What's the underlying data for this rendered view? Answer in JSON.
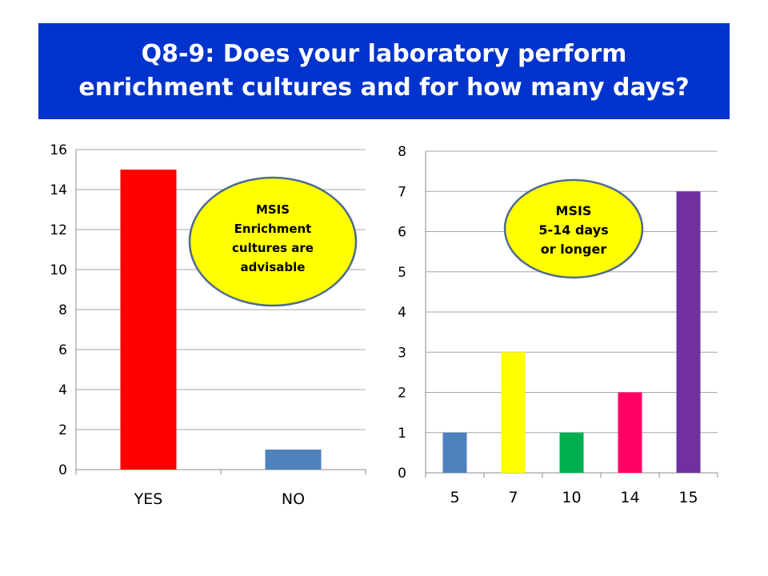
{
  "title": {
    "line1": "Q8-9: Does your laboratory perform",
    "line2": "enrichment cultures and for how many days?"
  },
  "chart_data": [
    {
      "type": "bar",
      "categories": [
        "YES",
        "NO"
      ],
      "values": [
        15,
        1
      ],
      "colors": [
        "#ff0000",
        "#4f81bd"
      ],
      "ylim": [
        0,
        16
      ],
      "yticks": [
        0,
        2,
        4,
        6,
        8,
        10,
        12,
        14,
        16
      ],
      "grid": true,
      "annotation": {
        "lines": [
          "MSIS",
          "Enrichment",
          "cultures are",
          "advisable"
        ],
        "fill": "#ffff00",
        "stroke": "#4f6b8e"
      }
    },
    {
      "type": "bar",
      "categories": [
        "5",
        "7",
        "10",
        "14",
        "15"
      ],
      "values": [
        1,
        3,
        1,
        2,
        7
      ],
      "colors": [
        "#4f81bd",
        "#ffff00",
        "#00b050",
        "#ff0066",
        "#7030a0"
      ],
      "ylim": [
        0,
        8
      ],
      "yticks": [
        0,
        1,
        2,
        3,
        4,
        5,
        6,
        7,
        8
      ],
      "grid": true,
      "annotation": {
        "lines": [
          "MSIS",
          "5-14 days",
          "or longer"
        ],
        "fill": "#ffff00",
        "stroke": "#4f6b8e"
      }
    }
  ]
}
